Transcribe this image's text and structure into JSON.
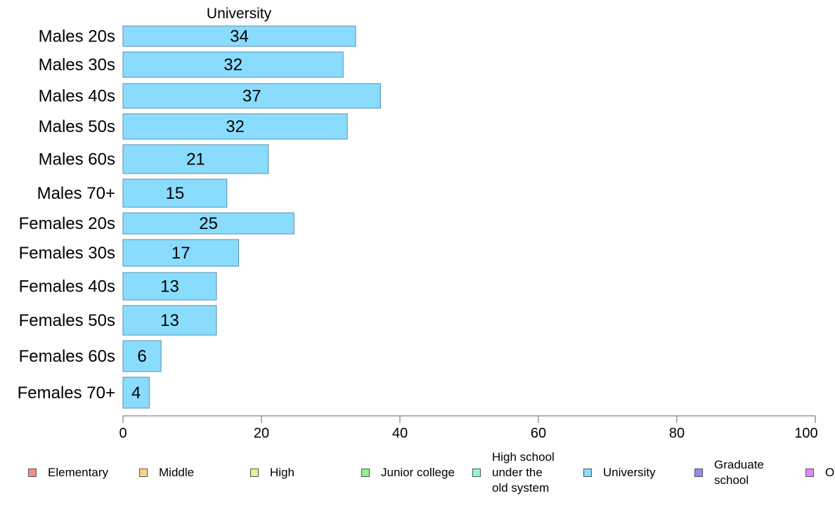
{
  "chart_data": {
    "type": "bar",
    "orientation": "horizontal",
    "title": "University",
    "categories": [
      "Males 20s",
      "Males 30s",
      "Males 40s",
      "Males 50s",
      "Males 60s",
      "Males 70+",
      "Females 20s",
      "Females 30s",
      "Females 40s",
      "Females 50s",
      "Females 60s",
      "Females 70+"
    ],
    "values": [
      34,
      32,
      37,
      32,
      21,
      15,
      25,
      17,
      13,
      13,
      6,
      4
    ],
    "bar_lengths": [
      33.6,
      31.8,
      37.2,
      32.4,
      21.0,
      15.0,
      24.7,
      16.7,
      13.5,
      13.5,
      5.5,
      3.8
    ],
    "xlim": [
      0,
      100
    ],
    "xticks": [
      0,
      20,
      40,
      60,
      80,
      100
    ],
    "xlabel": "",
    "ylabel": "",
    "grid": false,
    "bar_color": "#8adcff",
    "bar_edge_color": "#5a8fa8",
    "legend_placement": "bottom",
    "legend": [
      {
        "label": "Elementary",
        "color": "#f28b8b"
      },
      {
        "label": "Middle",
        "color": "#fbd38a"
      },
      {
        "label": "High",
        "color": "#ddf58c"
      },
      {
        "label": "Junior college",
        "color": "#8ef08c"
      },
      {
        "label": "High school\nunder the\nold system",
        "color": "#8cf5dd"
      },
      {
        "label": "University",
        "color": "#8adcff"
      },
      {
        "label": "Graduate\nschool",
        "color": "#8c8cf5"
      },
      {
        "label": "O",
        "color": "#dd8cf5"
      }
    ]
  }
}
